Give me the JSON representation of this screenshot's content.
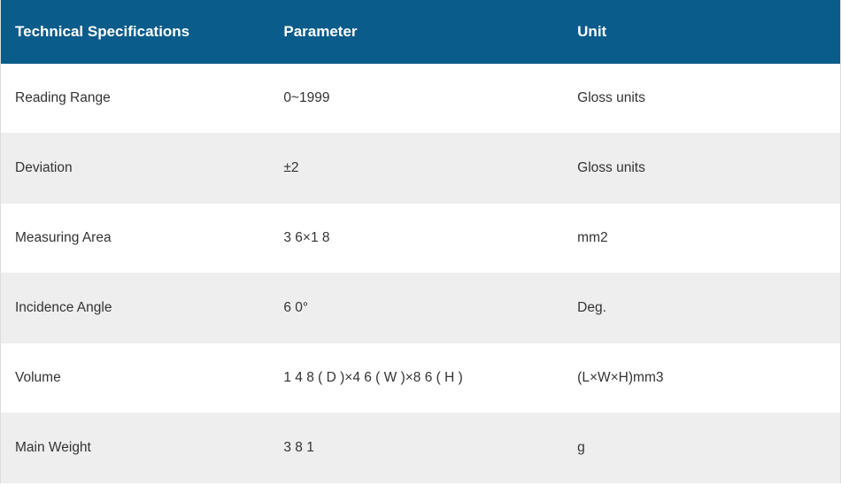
{
  "table": {
    "header_background": "#0a5c8a",
    "header_text_color": "#ffffff",
    "row_odd_background": "#ffffff",
    "row_even_background": "#eeeeee",
    "body_text_color": "#333333",
    "header_fontsize": 17,
    "body_fontsize": 15.5,
    "columns": [
      {
        "label": "Technical Specifications",
        "width_pct": 32
      },
      {
        "label": "Parameter",
        "width_pct": 35
      },
      {
        "label": "Unit",
        "width_pct": 33
      }
    ],
    "rows": [
      {
        "spec": "Reading Range",
        "parameter": "0~1999",
        "unit": "Gloss units"
      },
      {
        "spec": "Deviation",
        "parameter": "±2",
        "unit": "Gloss units"
      },
      {
        "spec": "Measuring Area",
        "parameter": "3 6×1 8",
        "unit": "mm2"
      },
      {
        "spec": "Incidence Angle",
        "parameter": "6 0°",
        "unit": "Deg."
      },
      {
        "spec": "Volume",
        "parameter": "1 4 8 ( D )×4 6 ( W )×8 6 ( H )",
        "unit": "(L×W×H)mm3"
      },
      {
        "spec": "Main Weight",
        "parameter": "3 8 1",
        "unit": "g"
      }
    ]
  }
}
